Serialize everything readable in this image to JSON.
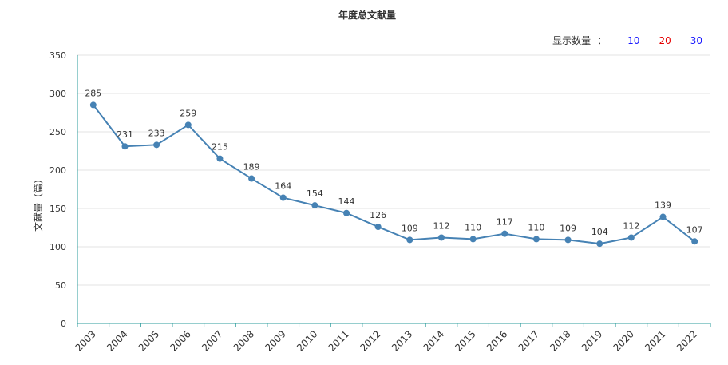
{
  "count_selector": {
    "label": "显示数量",
    "separator": "：",
    "options": [
      {
        "label": "10",
        "color": "#1a1aff"
      },
      {
        "label": "20",
        "color": "#e60000"
      },
      {
        "label": "30",
        "color": "#1a1aff"
      }
    ]
  },
  "chart_data": {
    "type": "line",
    "title": "年度总文献量",
    "xlabel": "",
    "ylabel": "文献量（篇）",
    "ylim": [
      0,
      350
    ],
    "yticks": [
      0,
      50,
      100,
      150,
      200,
      250,
      300,
      350
    ],
    "grid": true,
    "series_color": "#4682b4",
    "categories": [
      "2003",
      "2004",
      "2005",
      "2006",
      "2007",
      "2008",
      "2009",
      "2010",
      "2011",
      "2012",
      "2013",
      "2014",
      "2015",
      "2016",
      "2017",
      "2018",
      "2019",
      "2020",
      "2021",
      "2022"
    ],
    "values": [
      285,
      231,
      233,
      259,
      215,
      189,
      164,
      154,
      144,
      126,
      109,
      112,
      110,
      117,
      110,
      109,
      104,
      112,
      139,
      107
    ]
  }
}
